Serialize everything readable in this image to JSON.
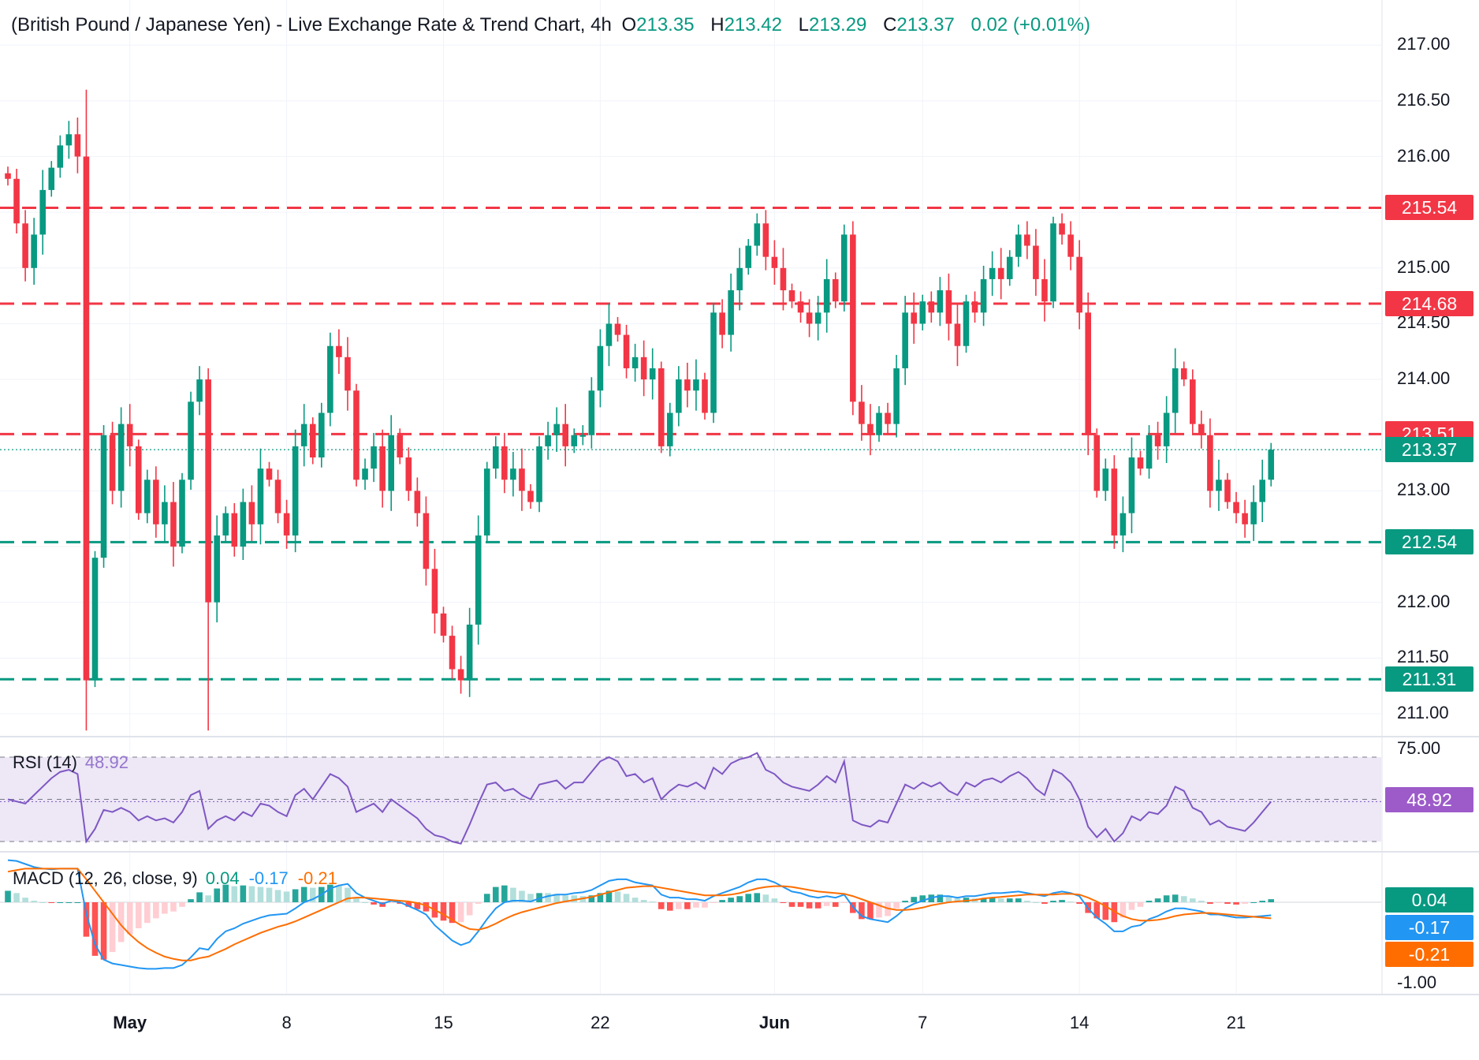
{
  "header": {
    "title": "(British Pound / Japanese Yen) - Live Exchange Rate & Trend Chart, 4h",
    "open_label": "O",
    "open": "213.35",
    "high_label": "H",
    "high": "213.42",
    "low_label": "L",
    "low": "213.29",
    "close_label": "C",
    "close": "213.37",
    "change": "0.02 (+0.01%)"
  },
  "rsi": {
    "name": "RSI (14)",
    "value": "48.92",
    "value_num": 48.92,
    "ticks": [
      "75.00"
    ],
    "upper": 70,
    "mid": 50,
    "lower": 30
  },
  "macd": {
    "name": "MACD (12, 26, close, 9)",
    "hist": "0.04",
    "macd": "-0.17",
    "signal": "-0.21",
    "hist_num": 0.04,
    "macd_num": -0.17,
    "signal_num": -0.21,
    "ticks": [
      "-1.00"
    ]
  },
  "colors": {
    "up": "#089981",
    "down": "#F23645",
    "rsi": "#7E57C2",
    "rsi_band": "#EDE7F6",
    "macd": "#2196F3",
    "signal": "#FF6D00",
    "hist_up": "#26A69A",
    "hist_up_light": "#B2DFDB",
    "hist_down": "#FF5252",
    "hist_down_light": "#FFCDD2"
  },
  "chart_data": {
    "type": "candlestick",
    "pair": "GBP/JPY",
    "timeframe": "4h",
    "y_ticks": [
      "211.00",
      "211.50",
      "212.00",
      "212.50",
      "213.00",
      "213.50",
      "214.00",
      "214.50",
      "215.00",
      "215.50",
      "216.00",
      "216.50",
      "217.00"
    ],
    "ylim": [
      210.8,
      217.2
    ],
    "x_ticks": [
      {
        "label": "May",
        "bold": true,
        "index": 14
      },
      {
        "label": "8",
        "bold": false,
        "index": 32
      },
      {
        "label": "15",
        "bold": false,
        "index": 50
      },
      {
        "label": "22",
        "bold": false,
        "index": 68
      },
      {
        "label": "Jun",
        "bold": true,
        "index": 88
      },
      {
        "label": "7",
        "bold": false,
        "index": 105
      },
      {
        "label": "14",
        "bold": false,
        "index": 123
      },
      {
        "label": "21",
        "bold": false,
        "index": 141
      }
    ],
    "last_price": "213.37",
    "last_price_num": 213.37,
    "levels": [
      {
        "label": "215.54",
        "value": 215.54,
        "kind": "resistance",
        "color": "#F23645"
      },
      {
        "label": "214.68",
        "value": 214.68,
        "kind": "resistance",
        "color": "#F23645"
      },
      {
        "label": "213.51",
        "value": 213.51,
        "kind": "resistance",
        "color": "#F23645"
      },
      {
        "label": "212.54",
        "value": 212.54,
        "kind": "support",
        "color": "#089981"
      },
      {
        "label": "211.31",
        "value": 211.31,
        "kind": "support",
        "color": "#089981"
      }
    ],
    "closes": [
      215.8,
      215.4,
      215.0,
      215.3,
      215.7,
      215.9,
      216.1,
      216.2,
      216.0,
      211.3,
      212.4,
      213.5,
      213.0,
      213.6,
      213.4,
      212.8,
      213.1,
      212.7,
      212.9,
      212.5,
      213.1,
      213.8,
      214.0,
      212.0,
      212.6,
      212.8,
      212.5,
      212.9,
      212.7,
      213.2,
      213.1,
      212.8,
      212.6,
      213.4,
      213.6,
      213.3,
      213.7,
      214.3,
      214.2,
      213.9,
      213.1,
      213.2,
      213.4,
      213.0,
      213.5,
      213.3,
      213.0,
      212.8,
      212.3,
      211.9,
      211.7,
      211.4,
      211.3,
      211.8,
      212.6,
      213.2,
      213.4,
      213.1,
      213.2,
      213.0,
      212.9,
      213.4,
      213.5,
      213.6,
      213.4,
      213.5,
      213.5,
      213.9,
      214.3,
      214.5,
      214.4,
      214.1,
      214.2,
      214.0,
      214.1,
      213.4,
      213.7,
      214.0,
      213.9,
      214.0,
      213.7,
      214.6,
      214.4,
      214.8,
      215.0,
      215.2,
      215.4,
      215.1,
      215.0,
      214.8,
      214.7,
      214.6,
      214.5,
      214.6,
      214.9,
      214.7,
      215.3,
      213.8,
      213.6,
      213.5,
      213.7,
      213.6,
      214.1,
      214.6,
      214.5,
      214.7,
      214.6,
      214.8,
      214.5,
      214.3,
      214.7,
      214.6,
      214.9,
      215.0,
      214.9,
      215.1,
      215.3,
      215.2,
      214.9,
      214.7,
      215.4,
      215.3,
      215.1,
      214.6,
      213.5,
      213.0,
      213.2,
      212.6,
      212.8,
      213.3,
      213.2,
      213.5,
      213.4,
      213.7,
      214.1,
      214.0,
      213.6,
      213.5,
      213.0,
      213.1,
      212.9,
      212.8,
      212.7,
      212.9,
      213.1,
      213.37
    ],
    "rsi_values": [
      50,
      49,
      48,
      52,
      56,
      60,
      63,
      64,
      62,
      30,
      36,
      45,
      44,
      46,
      44,
      40,
      42,
      40,
      41,
      39,
      44,
      52,
      54,
      36,
      40,
      42,
      40,
      44,
      42,
      48,
      47,
      44,
      42,
      52,
      55,
      50,
      56,
      62,
      60,
      56,
      44,
      46,
      48,
      44,
      50,
      47,
      44,
      41,
      36,
      33,
      32,
      30,
      29,
      38,
      48,
      57,
      58,
      54,
      55,
      52,
      50,
      57,
      58,
      59,
      55,
      58,
      58,
      63,
      68,
      70,
      68,
      61,
      62,
      58,
      60,
      50,
      54,
      57,
      56,
      58,
      55,
      65,
      62,
      67,
      69,
      70,
      72,
      64,
      62,
      58,
      56,
      55,
      54,
      57,
      61,
      58,
      68,
      40,
      38,
      37,
      40,
      39,
      48,
      57,
      55,
      58,
      56,
      58,
      54,
      52,
      58,
      56,
      59,
      60,
      58,
      61,
      63,
      60,
      55,
      52,
      64,
      62,
      58,
      50,
      37,
      32,
      36,
      30,
      34,
      42,
      40,
      44,
      43,
      47,
      56,
      54,
      46,
      44,
      38,
      40,
      37,
      36,
      35,
      39,
      44,
      48.92
    ],
    "macd_values": [
      0.55,
      0.54,
      0.5,
      0.46,
      0.44,
      0.43,
      0.44,
      0.44,
      0.44,
      -0.15,
      -0.55,
      -0.75,
      -0.8,
      -0.82,
      -0.84,
      -0.86,
      -0.87,
      -0.87,
      -0.86,
      -0.86,
      -0.82,
      -0.72,
      -0.6,
      -0.62,
      -0.48,
      -0.38,
      -0.34,
      -0.28,
      -0.24,
      -0.2,
      -0.17,
      -0.16,
      -0.15,
      -0.08,
      0.0,
      0.04,
      0.1,
      0.18,
      0.22,
      0.24,
      0.12,
      0.06,
      0.02,
      -0.02,
      0.02,
      0.0,
      -0.05,
      -0.1,
      -0.16,
      -0.3,
      -0.4,
      -0.5,
      -0.56,
      -0.52,
      -0.38,
      -0.22,
      -0.08,
      0.0,
      0.02,
      0.02,
      0.01,
      0.05,
      0.08,
      0.1,
      0.1,
      0.12,
      0.13,
      0.16,
      0.22,
      0.28,
      0.3,
      0.3,
      0.26,
      0.24,
      0.22,
      0.1,
      0.06,
      0.06,
      0.04,
      0.04,
      0.02,
      0.08,
      0.12,
      0.16,
      0.2,
      0.26,
      0.3,
      0.3,
      0.26,
      0.2,
      0.14,
      0.12,
      0.08,
      0.06,
      0.08,
      0.06,
      0.1,
      -0.06,
      -0.18,
      -0.22,
      -0.24,
      -0.26,
      -0.18,
      -0.08,
      -0.02,
      0.02,
      0.06,
      0.08,
      0.08,
      0.06,
      0.08,
      0.08,
      0.1,
      0.12,
      0.12,
      0.13,
      0.14,
      0.12,
      0.1,
      0.08,
      0.12,
      0.14,
      0.12,
      0.08,
      -0.08,
      -0.2,
      -0.28,
      -0.38,
      -0.38,
      -0.32,
      -0.3,
      -0.22,
      -0.18,
      -0.12,
      -0.08,
      -0.08,
      -0.1,
      -0.12,
      -0.16,
      -0.16,
      -0.18,
      -0.2,
      -0.2,
      -0.19,
      -0.18,
      -0.17
    ],
    "signal_values": [
      0.4,
      0.42,
      0.44,
      0.44,
      0.44,
      0.44,
      0.44,
      0.44,
      0.44,
      0.3,
      0.15,
      0.0,
      -0.15,
      -0.3,
      -0.42,
      -0.52,
      -0.6,
      -0.66,
      -0.71,
      -0.74,
      -0.76,
      -0.76,
      -0.73,
      -0.71,
      -0.66,
      -0.61,
      -0.55,
      -0.5,
      -0.45,
      -0.4,
      -0.36,
      -0.32,
      -0.29,
      -0.25,
      -0.2,
      -0.15,
      -0.1,
      -0.05,
      0.0,
      0.05,
      0.06,
      0.06,
      0.05,
      0.04,
      0.03,
      0.02,
      0.01,
      -0.01,
      -0.04,
      -0.1,
      -0.16,
      -0.23,
      -0.3,
      -0.35,
      -0.36,
      -0.33,
      -0.28,
      -0.22,
      -0.17,
      -0.13,
      -0.1,
      -0.07,
      -0.04,
      -0.01,
      0.01,
      0.03,
      0.05,
      0.07,
      0.1,
      0.13,
      0.16,
      0.19,
      0.2,
      0.21,
      0.21,
      0.19,
      0.17,
      0.15,
      0.13,
      0.11,
      0.09,
      0.09,
      0.09,
      0.1,
      0.12,
      0.15,
      0.18,
      0.2,
      0.21,
      0.21,
      0.2,
      0.18,
      0.16,
      0.14,
      0.13,
      0.12,
      0.11,
      0.08,
      0.04,
      0.0,
      -0.04,
      -0.08,
      -0.1,
      -0.1,
      -0.09,
      -0.07,
      -0.04,
      -0.02,
      0.0,
      0.01,
      0.02,
      0.03,
      0.05,
      0.06,
      0.07,
      0.08,
      0.09,
      0.1,
      0.1,
      0.1,
      0.1,
      0.11,
      0.11,
      0.1,
      0.06,
      0.01,
      -0.05,
      -0.12,
      -0.18,
      -0.22,
      -0.24,
      -0.24,
      -0.23,
      -0.21,
      -0.18,
      -0.16,
      -0.15,
      -0.14,
      -0.14,
      -0.15,
      -0.16,
      -0.17,
      -0.18,
      -0.19,
      -0.2,
      -0.21
    ]
  }
}
